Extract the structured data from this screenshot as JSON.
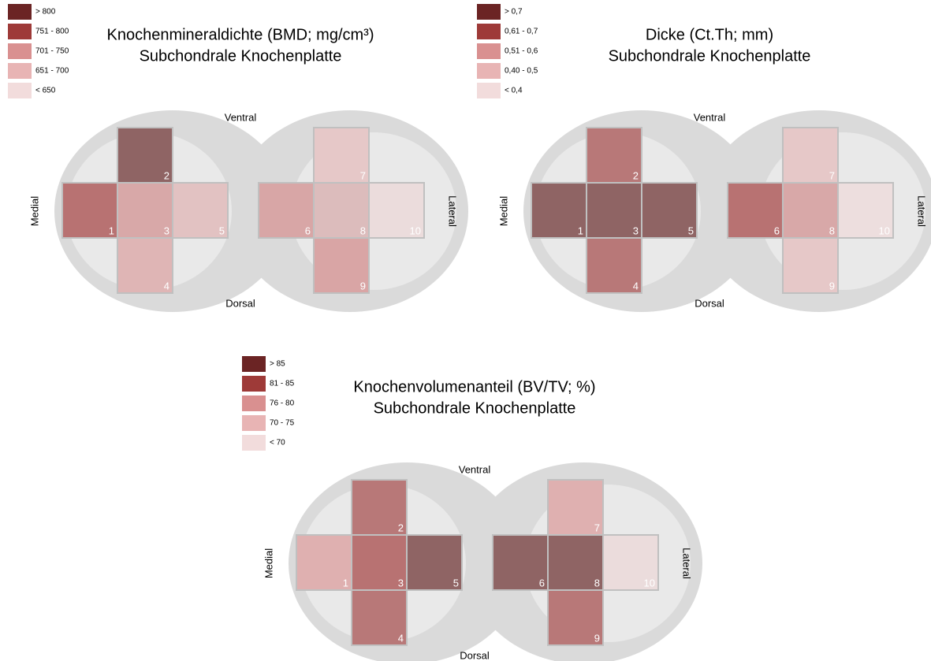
{
  "panels": [
    {
      "title": [
        "Knochenmineraldichte (BMD; mg/cm³)",
        "Subchondrale Knochenplatte"
      ],
      "legend": [
        {
          "label": "> 800",
          "color": "#6b2424"
        },
        {
          "label": "751 - 800",
          "color": "#9e3a38"
        },
        {
          "label": "701 - 750",
          "color": "#d99090"
        },
        {
          "label": "651 - 700",
          "color": "#e8b4b4"
        },
        {
          "label": "< 650",
          "color": "#f2dcdc"
        }
      ],
      "orientation": {
        "top": "Ventral",
        "bottom": "Dorsal",
        "left": "Medial",
        "right": "Lateral"
      },
      "regions": [
        {
          "label": "1",
          "color": "#b87272"
        },
        {
          "label": "2",
          "color": "#8f6464"
        },
        {
          "label": "3",
          "color": "#d8a8a8"
        },
        {
          "label": "4",
          "color": "#dfb5b5"
        },
        {
          "label": "5",
          "color": "#e2c2c2"
        },
        {
          "label": "6",
          "color": "#d8a6a6"
        },
        {
          "label": "7",
          "color": "#e6c8c8"
        },
        {
          "label": "8",
          "color": "#dcbcbc"
        },
        {
          "label": "9",
          "color": "#d9a5a5"
        },
        {
          "label": "10",
          "color": "#ebdcdc"
        }
      ]
    },
    {
      "title": [
        "Dicke (Ct.Th; mm)",
        "Subchondrale Knochenplatte"
      ],
      "legend": [
        {
          "label": "> 0,7",
          "color": "#6b2424"
        },
        {
          "label": "0,61 - 0,7",
          "color": "#9e3a38"
        },
        {
          "label": "0,51 - 0,6",
          "color": "#d99090"
        },
        {
          "label": "0,40 - 0,5",
          "color": "#e8b4b4"
        },
        {
          "label": "< 0,4",
          "color": "#f2dcdc"
        }
      ],
      "orientation": {
        "top": "Ventral",
        "bottom": "Dorsal",
        "left": "Medial",
        "right": "Lateral"
      },
      "regions": [
        {
          "label": "1",
          "color": "#8f6464"
        },
        {
          "label": "2",
          "color": "#b87878"
        },
        {
          "label": "3",
          "color": "#8f6464"
        },
        {
          "label": "4",
          "color": "#b87878"
        },
        {
          "label": "5",
          "color": "#8f6464"
        },
        {
          "label": "6",
          "color": "#b87272"
        },
        {
          "label": "7",
          "color": "#e6c8c8"
        },
        {
          "label": "8",
          "color": "#d8a8a8"
        },
        {
          "label": "9",
          "color": "#e6c8c8"
        },
        {
          "label": "10",
          "color": "#eddede"
        }
      ]
    },
    {
      "title": [
        "Knochenvolumenanteil (BV/TV; %)",
        "Subchondrale Knochenplatte"
      ],
      "legend": [
        {
          "label": "> 85",
          "color": "#6b2424"
        },
        {
          "label": "81 - 85",
          "color": "#9e3a38"
        },
        {
          "label": "76 - 80",
          "color": "#d99090"
        },
        {
          "label": "70 - 75",
          "color": "#e8b4b4"
        },
        {
          "label": "< 70",
          "color": "#f2dcdc"
        }
      ],
      "orientation": {
        "top": "Ventral",
        "bottom": "Dorsal",
        "left": "Medial",
        "right": "Lateral"
      },
      "regions": [
        {
          "label": "1",
          "color": "#dfb0b0"
        },
        {
          "label": "2",
          "color": "#b87878"
        },
        {
          "label": "3",
          "color": "#b87272"
        },
        {
          "label": "4",
          "color": "#b87878"
        },
        {
          "label": "5",
          "color": "#8f6464"
        },
        {
          "label": "6",
          "color": "#8f6464"
        },
        {
          "label": "7",
          "color": "#dfb0b0"
        },
        {
          "label": "8",
          "color": "#8f6464"
        },
        {
          "label": "9",
          "color": "#b87878"
        },
        {
          "label": "10",
          "color": "#ebdcdc"
        }
      ]
    }
  ]
}
